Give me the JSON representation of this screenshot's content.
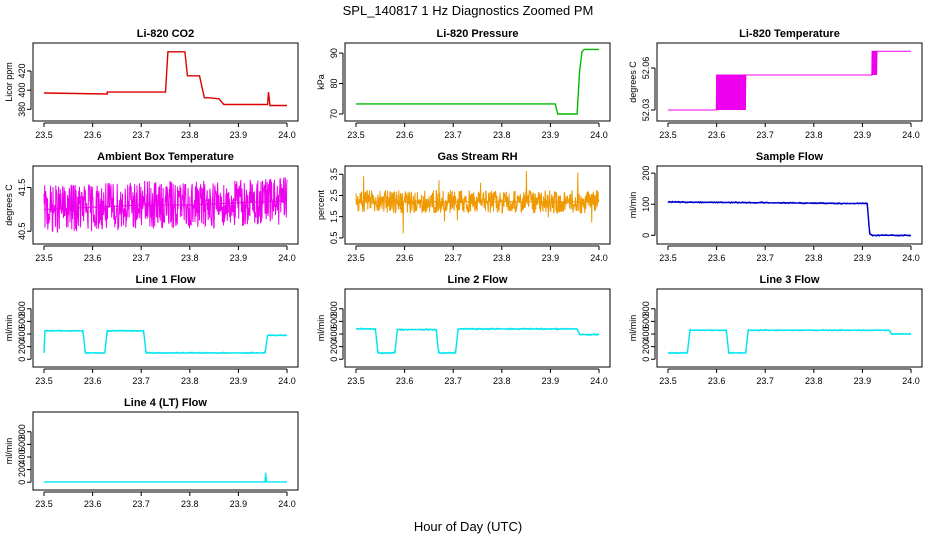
{
  "figure": {
    "title": "SPL_140817  1 Hz Diagnostics Zoomed PM",
    "xlabel": "Hour of Day (UTC)"
  },
  "chart_data": [
    {
      "type": "line",
      "title": "Li-820 CO2",
      "ylabel": "Licor ppm",
      "color": "#dd0000",
      "xlim": [
        23.5,
        24.0
      ],
      "ylim": [
        372,
        445
      ],
      "yticks": [
        "380",
        "400",
        "420"
      ],
      "xticks": [
        "23.5",
        "23.6",
        "23.7",
        "23.8",
        "23.9",
        "24.0"
      ],
      "series": [
        {
          "x": [
            23.5,
            23.63,
            23.63,
            23.75,
            23.755,
            23.79,
            23.795,
            23.82,
            23.83,
            23.84,
            23.86,
            23.87,
            23.96,
            23.962,
            23.965,
            24.0
          ],
          "y": [
            397,
            396,
            398,
            398,
            440,
            440,
            415,
            415,
            392,
            392,
            391,
            385,
            385,
            398,
            384,
            384
          ]
        }
      ]
    },
    {
      "type": "line",
      "title": "Li-820 Pressure",
      "ylabel": "kPa",
      "color": "#00bb00",
      "xlim": [
        23.5,
        24.0
      ],
      "ylim": [
        69,
        92
      ],
      "yticks": [
        "70",
        "80",
        "90"
      ],
      "xticks": [
        "23.5",
        "23.6",
        "23.7",
        "23.8",
        "23.9",
        "24.0"
      ],
      "series": [
        {
          "x": [
            23.5,
            23.91,
            23.915,
            23.955,
            23.96,
            23.965,
            23.97,
            24.0
          ],
          "y": [
            73.3,
            73.3,
            70.0,
            70.0,
            84,
            90.5,
            91.2,
            91.2
          ]
        }
      ]
    },
    {
      "type": "line",
      "title": "Li-820 Temperature",
      "ylabel": "degrees C",
      "color": "#ee00ee",
      "xlim": [
        23.5,
        24.0
      ],
      "ylim": [
        52.025,
        52.075
      ],
      "yticks": [
        "52.03",
        "52.06"
      ],
      "xticks": [
        "23.5",
        "23.6",
        "23.7",
        "23.8",
        "23.9",
        "24.0"
      ],
      "series": [
        {
          "x": [
            23.5,
            23.6,
            23.6,
            23.66,
            23.92,
            23.92,
            24.0
          ],
          "y": [
            52.03,
            52.03,
            52.055,
            52.055,
            52.055,
            52.072,
            52.072
          ]
        }
      ]
    },
    {
      "type": "line",
      "title": "Ambient Box Temperature",
      "ylabel": "degrees C",
      "color": "#ee00ee",
      "xlim": [
        23.5,
        24.0
      ],
      "ylim": [
        40.3,
        41.9
      ],
      "yticks": [
        "40.5",
        "41.5"
      ],
      "xticks": [
        "23.5",
        "23.6",
        "23.7",
        "23.8",
        "23.9",
        "24.0"
      ],
      "series": [
        {
          "x": [
            23.5,
            23.6,
            23.7,
            23.8,
            23.9,
            24.0
          ],
          "y": [
            41.0,
            41.05,
            41.1,
            41.1,
            41.15,
            41.2
          ]
        }
      ]
    },
    {
      "type": "line",
      "title": "Gas Stream RH",
      "ylabel": "percent",
      "color": "#ee9900",
      "xlim": [
        23.5,
        24.0
      ],
      "ylim": [
        0.4,
        3.7
      ],
      "yticks": [
        "0.5",
        "1.5",
        "2.5",
        "3.5"
      ],
      "xticks": [
        "23.5",
        "23.6",
        "23.7",
        "23.8",
        "23.9",
        "24.0"
      ],
      "series": [
        {
          "x": [
            23.5,
            24.0
          ],
          "y": [
            2.2,
            2.2
          ]
        }
      ]
    },
    {
      "type": "line",
      "title": "Sample Flow",
      "ylabel": "ml/min",
      "color": "#0000cc",
      "xlim": [
        23.5,
        24.0
      ],
      "ylim": [
        -15,
        210
      ],
      "yticks": [
        "0",
        "100",
        "200"
      ],
      "xticks": [
        "23.5",
        "23.6",
        "23.7",
        "23.8",
        "23.9",
        "24.0"
      ],
      "series": [
        {
          "x": [
            23.5,
            23.7,
            23.91,
            23.915,
            23.92,
            24.0
          ],
          "y": [
            107,
            105,
            102,
            5,
            0,
            0
          ]
        }
      ]
    },
    {
      "type": "line",
      "title": "Line 1 Flow",
      "ylabel": "ml/min",
      "color": "#00e5ee",
      "xlim": [
        23.5,
        24.0
      ],
      "ylim": [
        -60,
        1050
      ],
      "yticks": [
        "0",
        "200",
        "400",
        "600",
        "800"
      ],
      "xticks": [
        "23.5",
        "23.6",
        "23.7",
        "23.8",
        "23.9",
        "24.0"
      ],
      "series": [
        {
          "x": [
            23.5,
            23.502,
            23.58,
            23.585,
            23.625,
            23.63,
            23.705,
            23.71,
            23.955,
            23.96,
            24.0
          ],
          "y": [
            100,
            450,
            450,
            100,
            100,
            450,
            450,
            100,
            100,
            380,
            380
          ]
        }
      ]
    },
    {
      "type": "line",
      "title": "Line 2 Flow",
      "ylabel": "ml/min",
      "color": "#00e5ee",
      "xlim": [
        23.5,
        24.0
      ],
      "ylim": [
        -60,
        1050
      ],
      "yticks": [
        "0",
        "200",
        "400",
        "600",
        "800"
      ],
      "xticks": [
        "23.5",
        "23.6",
        "23.7",
        "23.8",
        "23.9",
        "24.0"
      ],
      "series": [
        {
          "x": [
            23.5,
            23.54,
            23.545,
            23.58,
            23.585,
            23.665,
            23.67,
            23.705,
            23.71,
            23.955,
            23.96,
            24.0
          ],
          "y": [
            480,
            480,
            100,
            100,
            470,
            470,
            100,
            100,
            480,
            480,
            390,
            390
          ]
        }
      ]
    },
    {
      "type": "line",
      "title": "Line 3 Flow",
      "ylabel": "ml/min",
      "color": "#00e5ee",
      "xlim": [
        23.5,
        24.0
      ],
      "ylim": [
        -60,
        1050
      ],
      "yticks": [
        "0",
        "200",
        "400",
        "600",
        "800"
      ],
      "xticks": [
        "23.5",
        "23.6",
        "23.7",
        "23.8",
        "23.9",
        "24.0"
      ],
      "series": [
        {
          "x": [
            23.5,
            23.502,
            23.54,
            23.545,
            23.62,
            23.625,
            23.66,
            23.665,
            23.955,
            23.96,
            24.0
          ],
          "y": [
            100,
            100,
            100,
            460,
            460,
            100,
            100,
            460,
            460,
            400,
            400
          ]
        }
      ]
    },
    {
      "type": "line",
      "title": "Line 4 (LT) Flow",
      "ylabel": "ml/min",
      "color": "#00e5ee",
      "xlim": [
        23.5,
        24.0
      ],
      "ylim": [
        -60,
        1050
      ],
      "yticks": [
        "0",
        "200",
        "400",
        "600",
        "800"
      ],
      "xticks": [
        "23.5",
        "23.6",
        "23.7",
        "23.8",
        "23.9",
        "24.0"
      ],
      "series": [
        {
          "x": [
            23.5,
            23.955,
            23.956,
            23.958,
            24.0
          ],
          "y": [
            5,
            5,
            150,
            5,
            5
          ]
        }
      ]
    }
  ]
}
